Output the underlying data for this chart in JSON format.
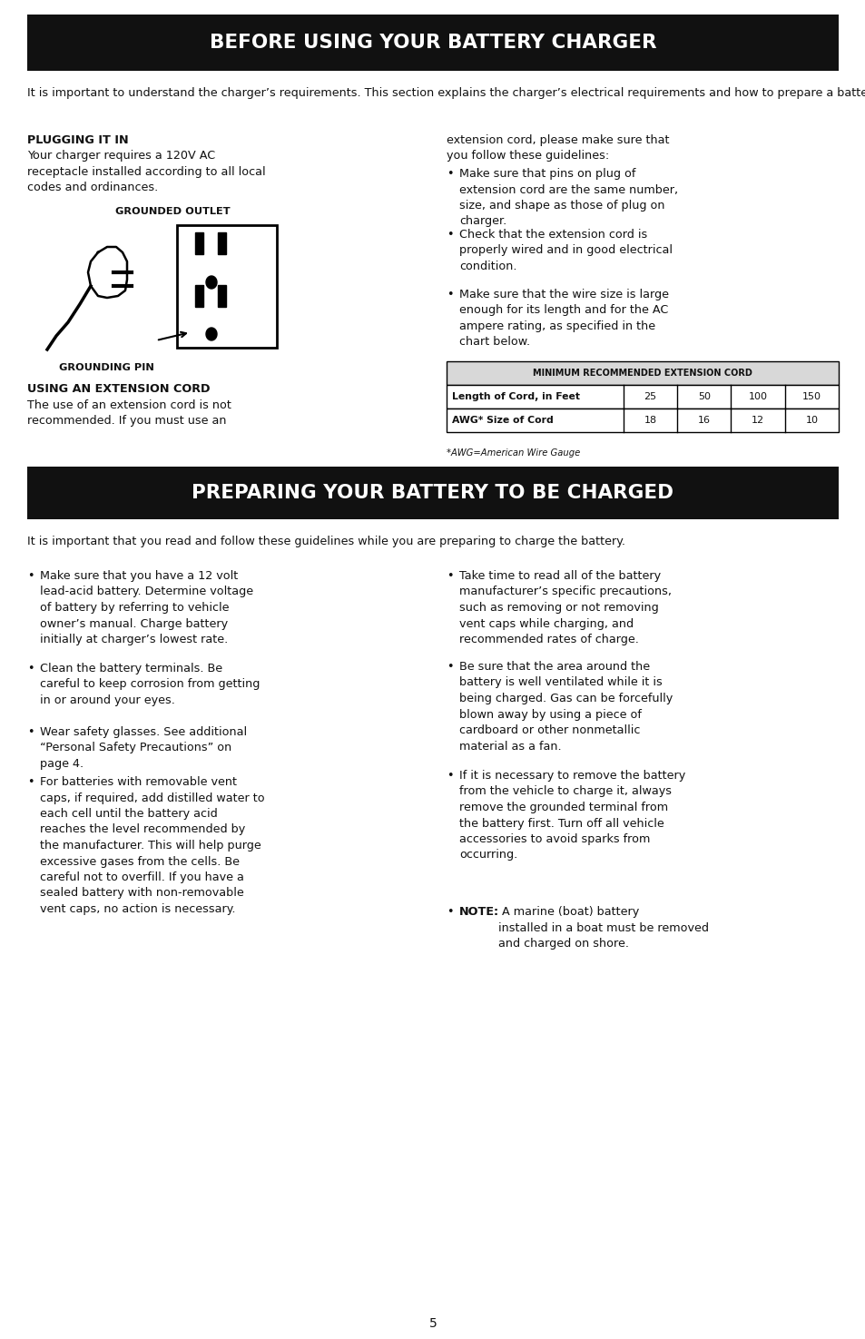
{
  "title1": "BEFORE USING YOUR BATTERY CHARGER",
  "title2": "PREPARING YOUR BATTERY TO BE CHARGED",
  "bg_color": "#ffffff",
  "header_bg": "#111111",
  "header_text_color": "#ffffff",
  "body_text_color": "#111111",
  "page_number": "5",
  "intro1": "It is important to understand the charger’s requirements. This section explains the charger’s electrical requirements and how to prepare a battery for charging.",
  "plugging_heading": "PLUGGING IT IN",
  "plugging_text": "Your charger requires a 120V AC\nreceptacle installed according to all local\ncodes and ordinances.",
  "grounded_outlet_label": "GROUNDED OUTLET",
  "grounding_pin_label": "GROUNDING PIN",
  "extension_heading": "USING AN EXTENSION CORD",
  "extension_text": "The use of an extension cord is not\nrecommended. If you must use an",
  "right_col_intro": "extension cord, please make sure that\nyou follow these guidelines:",
  "bullet1a": "Make sure that pins on plug of\nextension cord are the same number,\nsize, and shape as those of plug on\ncharger.",
  "bullet1b": "Check that the extension cord is\nproperly wired and in good electrical\ncondition.",
  "bullet1c": "Make sure that the wire size is large\nenough for its length and for the AC\nampere rating, as specified in the\nchart below.",
  "table_header": "MINIMUM RECOMMENDED EXTENSION CORD",
  "table_row1_label": "Length of Cord, in Feet",
  "table_row1_values": [
    "25",
    "50",
    "100",
    "150"
  ],
  "table_row2_label": "AWG* Size of Cord",
  "table_row2_values": [
    "18",
    "16",
    "12",
    "10"
  ],
  "table_footnote": "*AWG=American Wire Gauge",
  "intro2": "It is important that you read and follow these guidelines while you are preparing to charge the battery.",
  "left_bullets": [
    "Make sure that you have a 12 volt\nlead-acid battery. Determine voltage\nof battery by referring to vehicle\nowner’s manual. Charge battery\ninitially at charger’s lowest rate.",
    "Clean the battery terminals. Be\ncareful to keep corrosion from getting\nin or around your eyes.",
    "Wear safety glasses. See additional\n“Personal Safety Precautions” on\npage 4.",
    "For batteries with removable vent\ncaps, if required, add distilled water to\neach cell until the battery acid\nreaches the level recommended by\nthe manufacturer. This will help purge\nexcessive gases from the cells. Be\ncareful not to overfill. If you have a\nsealed battery with non-removable\nvent caps, no action is necessary."
  ],
  "right_bullets_plain": [
    "Take time to read all of the battery\nmanufacturer’s specific precautions,\nsuch as removing or not removing\nvent caps while charging, and\nrecommended rates of charge.",
    "Be sure that the area around the\nbattery is well ventilated while it is\nbeing charged. Gas can be forcefully\nblown away by using a piece of\ncardboard or other nonmetallic\nmaterial as a fan.",
    "If it is necessary to remove the battery\nfrom the vehicle to charge it, always\nremove the grounded terminal from\nthe battery first. Turn off all vehicle\naccessories to avoid sparks from\noccurring."
  ],
  "note_bold": "NOTE:",
  "note_rest": " A marine (boat) battery\ninstalled in a boat must be removed\nand charged on shore."
}
